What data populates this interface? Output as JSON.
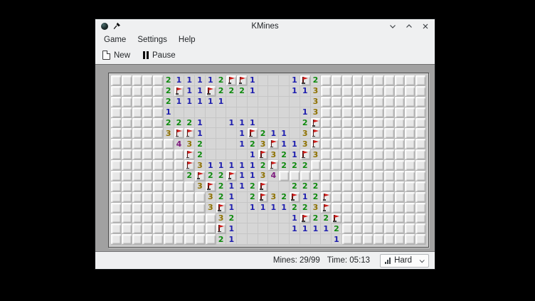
{
  "window": {
    "title": "KMines"
  },
  "titlebar": {
    "app_icon": "kmines-mine-ball-icon",
    "pin_icon": "pin-icon",
    "controls": [
      "minimize",
      "maximize",
      "close"
    ]
  },
  "menu": {
    "items": [
      "Game",
      "Settings",
      "Help"
    ]
  },
  "toolbar": {
    "buttons": [
      {
        "label": "New",
        "icon": "new-document-icon"
      },
      {
        "label": "Pause",
        "icon": "pause-icon"
      }
    ]
  },
  "board": {
    "cols": 30,
    "rows": 16,
    "legend": {
      ".": "hidden",
      "F": "hidden+flag",
      "-": "revealed empty",
      "digit": "revealed number"
    },
    "cells": [
      ".....211112FF1---1F2..........",
      ".....2F11F2221---113..........",
      ".....211111--------3..........",
      ".....1------------13..........",
      ".....2221--111----2F..........",
      ".....3FF1---1F211-3F..........",
      "......432---123F113F..........",
      ".......F2----1F321F3..........",
      ".......F3111112F222...........",
      ".......2F22F1134..............",
      "........3F2112F--222..........",
      ".........321-2F32F12F.........",
      ".........3F1-1111223F.........",
      "..........32-----1F22F........",
      "..........F1-----11112........",
      "..........21---------1........"
    ],
    "number_colors": {
      "1": "#1c1cae",
      "2": "#0e8a0e",
      "3": "#8e7100",
      "4": "#7d1a7d"
    },
    "flag_color": "#ce1a17"
  },
  "statusbar": {
    "mines_label": "Mines: 29/99",
    "time_label": "Time: 05:13",
    "difficulty": {
      "value": "Hard",
      "icon": "difficulty-levels-icon",
      "chevron": "chevron-down-icon"
    }
  }
}
